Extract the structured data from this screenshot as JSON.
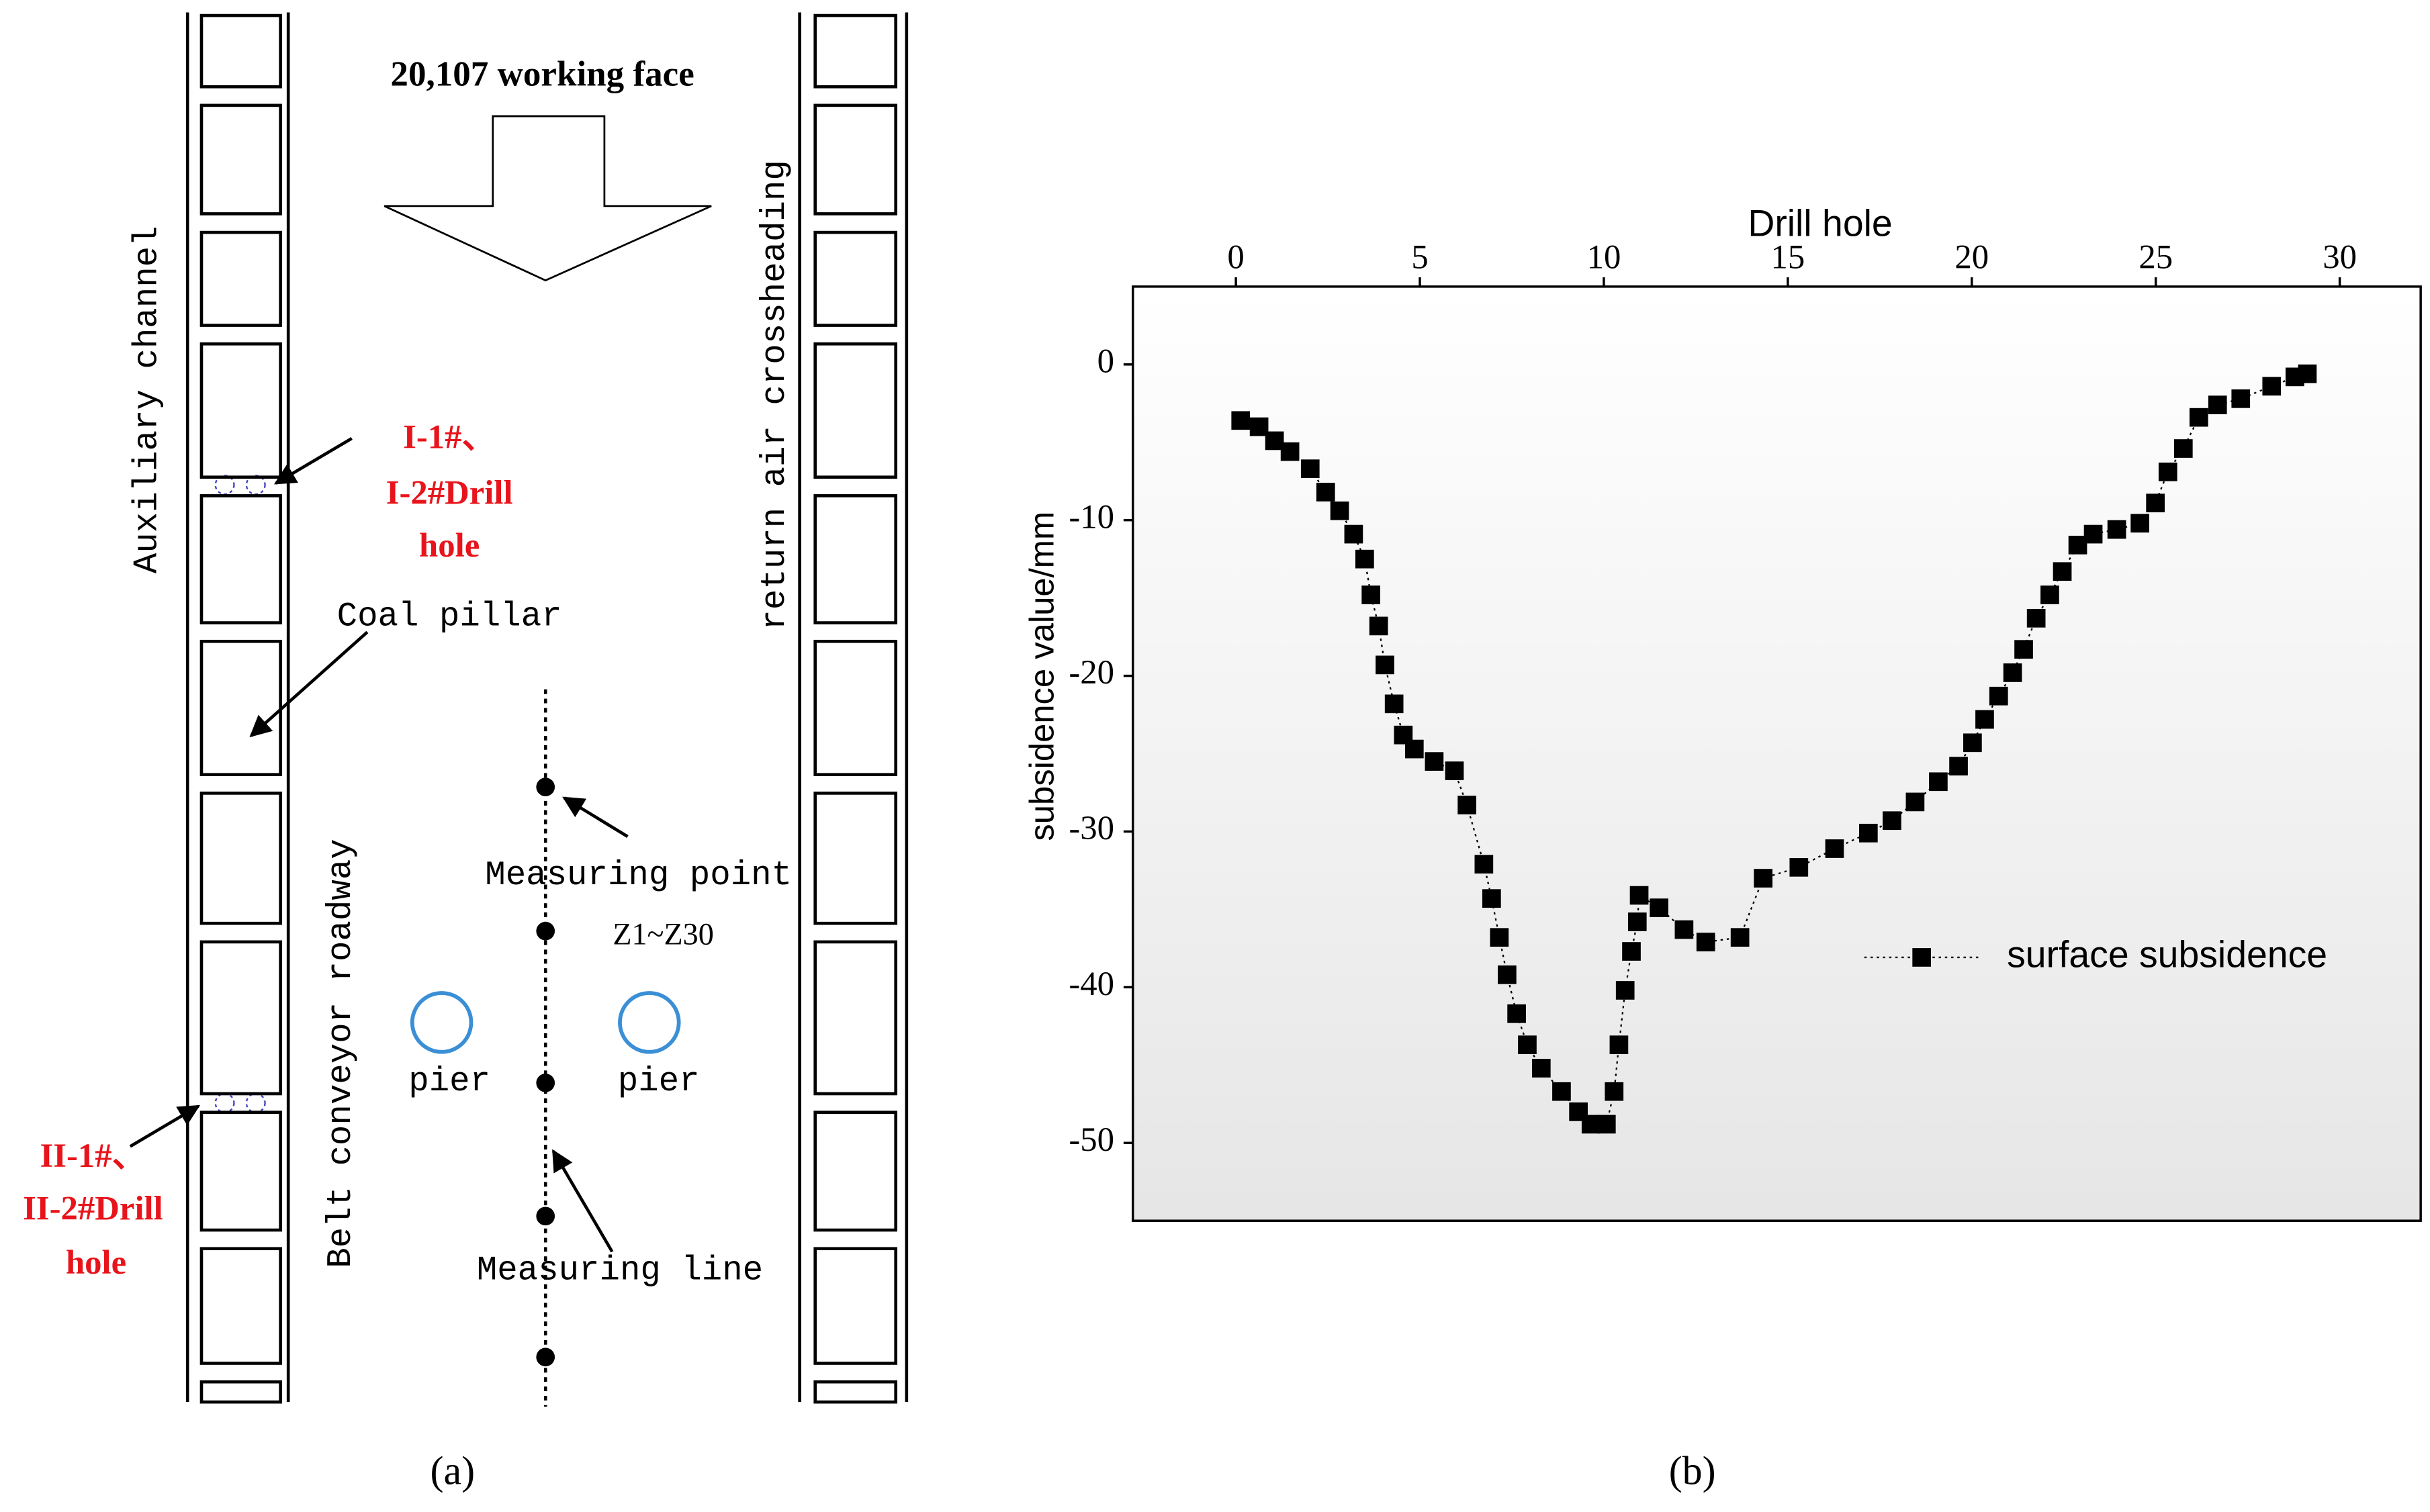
{
  "chart_data": {
    "type": "line",
    "x_label": "Drill hole",
    "y_label": "subsidence value/mm",
    "xlim": [
      -2.8,
      32.2
    ],
    "xticks": [
      0,
      5,
      10,
      15,
      20,
      25,
      30
    ],
    "ylim": [
      -55,
      5
    ],
    "yticks": [
      0,
      -10,
      -20,
      -30,
      -40,
      -50
    ],
    "x": [
      0.13,
      0.63,
      1.05,
      1.47,
      2.02,
      2.44,
      2.82,
      3.2,
      3.5,
      3.67,
      3.88,
      4.05,
      4.3,
      4.55,
      4.85,
      5.39,
      5.94,
      6.28,
      6.74,
      6.95,
      7.16,
      7.37,
      7.63,
      7.92,
      8.3,
      8.85,
      9.31,
      9.65,
      10.07,
      10.28,
      10.41,
      10.58,
      10.75,
      10.91,
      10.96,
      11.5,
      12.18,
      12.77,
      13.7,
      14.33,
      15.3,
      16.27,
      17.19,
      17.83,
      18.46,
      19.09,
      19.64,
      20.02,
      20.35,
      20.73,
      21.11,
      21.41,
      21.75,
      22.12,
      22.46,
      22.88,
      23.3,
      23.94,
      24.57,
      24.99,
      25.33,
      25.75,
      26.17,
      26.68,
      27.31,
      28.15,
      28.78,
      29.12
    ],
    "series": [
      {
        "name": "surface subsidence",
        "color": "#000000",
        "marker": "square",
        "line_style": "dotted",
        "values": [
          -3.6,
          -4.0,
          -4.9,
          -5.6,
          -6.7,
          -8.2,
          -9.4,
          -10.9,
          -12.5,
          -14.8,
          -16.8,
          -19.3,
          -21.8,
          -23.8,
          -24.7,
          -25.5,
          -26.1,
          -28.3,
          -32.1,
          -34.3,
          -36.8,
          -39.2,
          -41.7,
          -43.7,
          -45.2,
          -46.7,
          -48.0,
          -48.8,
          -48.8,
          -46.7,
          -43.7,
          -40.2,
          -37.7,
          -35.8,
          -34.1,
          -34.9,
          -36.3,
          -37.1,
          -36.8,
          -33.0,
          -32.3,
          -31.1,
          -30.1,
          -29.3,
          -28.1,
          -26.8,
          -25.8,
          -24.3,
          -22.8,
          -21.3,
          -19.8,
          -18.3,
          -16.3,
          -14.8,
          -13.3,
          -11.6,
          -10.9,
          -10.6,
          -10.2,
          -8.9,
          -6.9,
          -5.4,
          -3.4,
          -2.6,
          -2.2,
          -1.4,
          -0.8,
          -0.6
        ]
      }
    ],
    "legend": "right",
    "panel_label": "(b)"
  },
  "diagram": {
    "working_face": "20,107 working face",
    "auxiliary_channel": "Auxiliary channel",
    "return_air": "return air crossheading",
    "belt_conveyor": "Belt conveyor roadway",
    "drill_hole_1": [
      "I-1#、",
      "I-2#Drill",
      "hole"
    ],
    "drill_hole_2": [
      "II-1#、",
      "II-2#Drill",
      "hole"
    ],
    "coal_pillar": "Coal pillar",
    "measuring_point": "Measuring point",
    "point_range": "Z1~Z30",
    "pier_left": "pier",
    "pier_right": "pier",
    "measuring_line": "Measuring line",
    "panel_label": "(a)"
  }
}
